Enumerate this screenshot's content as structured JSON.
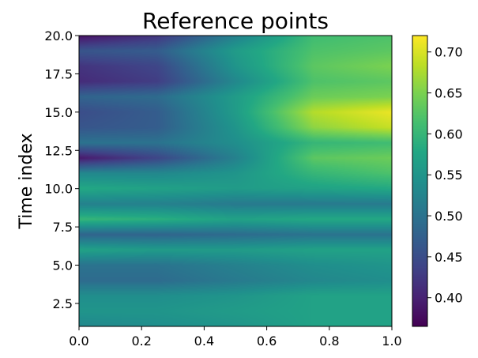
{
  "chart_data": {
    "type": "heatmap",
    "title": "Reference points",
    "xlabel": "",
    "ylabel": "Time index",
    "colormap": "viridis",
    "grid": false,
    "xlim": [
      0.0,
      1.0
    ],
    "ylim": [
      20.0,
      1.0
    ],
    "y_inverted": true,
    "xticks": [
      0.0,
      0.2,
      0.4,
      0.6,
      0.8,
      1.0
    ],
    "xtick_labels": [
      "0.0",
      "0.2",
      "0.4",
      "0.6",
      "0.8",
      "1.0"
    ],
    "yticks": [
      2.5,
      5.0,
      7.5,
      10.0,
      12.5,
      15.0,
      17.5,
      20.0
    ],
    "ytick_labels": [
      "2.5",
      "5.0",
      "7.5",
      "10.0",
      "12.5",
      "15.0",
      "17.5",
      "20.0"
    ],
    "colorbar": {
      "min": 0.365,
      "max": 0.72,
      "ticks": [
        0.4,
        0.45,
        0.5,
        0.55,
        0.6,
        0.65,
        0.7
      ],
      "tick_labels": [
        "0.40",
        "0.45",
        "0.50",
        "0.55",
        "0.60",
        "0.65",
        "0.70"
      ]
    },
    "x": [
      0.0,
      0.25,
      0.5,
      0.75,
      1.0
    ],
    "y": [
      1,
      2,
      3,
      4,
      5,
      6,
      7,
      8,
      9,
      10,
      11,
      12,
      13,
      14,
      15,
      16,
      17,
      18,
      19,
      20
    ],
    "values": [
      [
        0.53,
        0.54,
        0.55,
        0.57,
        0.57
      ],
      [
        0.55,
        0.55,
        0.56,
        0.57,
        0.57
      ],
      [
        0.54,
        0.54,
        0.55,
        0.57,
        0.57
      ],
      [
        0.49,
        0.49,
        0.51,
        0.53,
        0.54
      ],
      [
        0.5,
        0.5,
        0.52,
        0.54,
        0.55
      ],
      [
        0.57,
        0.56,
        0.56,
        0.57,
        0.57
      ],
      [
        0.48,
        0.48,
        0.49,
        0.5,
        0.5
      ],
      [
        0.6,
        0.59,
        0.57,
        0.58,
        0.58
      ],
      [
        0.52,
        0.52,
        0.51,
        0.51,
        0.51
      ],
      [
        0.58,
        0.57,
        0.56,
        0.57,
        0.58
      ],
      [
        0.53,
        0.53,
        0.55,
        0.6,
        0.62
      ],
      [
        0.39,
        0.44,
        0.52,
        0.63,
        0.64
      ],
      [
        0.5,
        0.5,
        0.54,
        0.6,
        0.61
      ],
      [
        0.46,
        0.47,
        0.55,
        0.66,
        0.69
      ],
      [
        0.45,
        0.47,
        0.56,
        0.68,
        0.71
      ],
      [
        0.48,
        0.49,
        0.56,
        0.64,
        0.65
      ],
      [
        0.41,
        0.43,
        0.53,
        0.62,
        0.63
      ],
      [
        0.42,
        0.44,
        0.55,
        0.63,
        0.65
      ],
      [
        0.46,
        0.47,
        0.56,
        0.62,
        0.63
      ],
      [
        0.38,
        0.42,
        0.52,
        0.61,
        0.62
      ]
    ]
  }
}
